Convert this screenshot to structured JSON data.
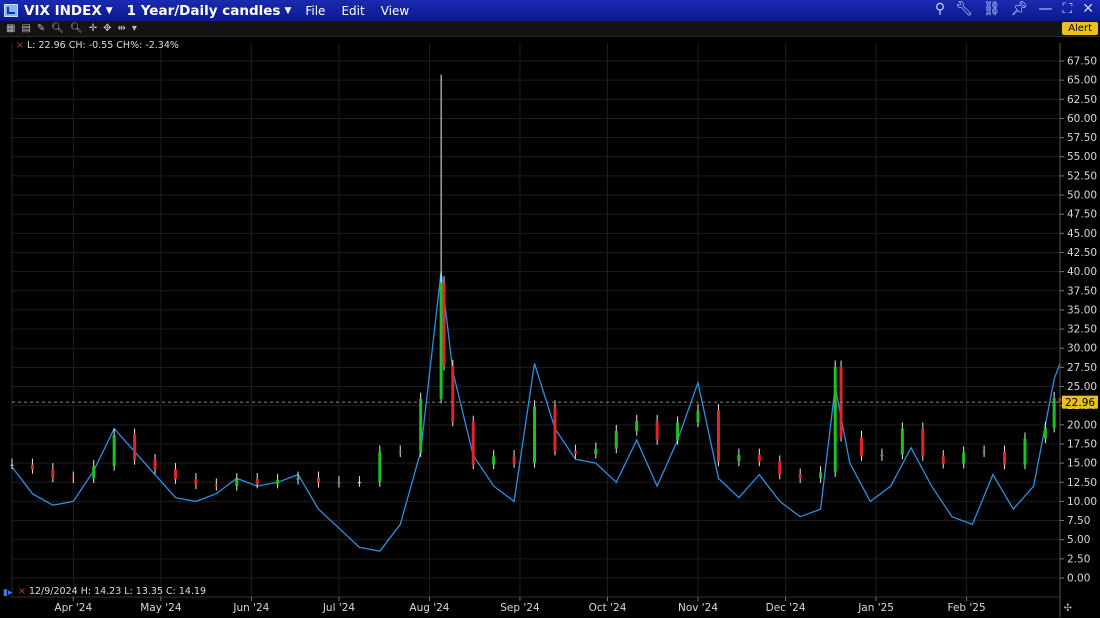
{
  "window": {
    "symbol": "VIX INDEX",
    "period": "1 Year/Daily candles",
    "menus": [
      {
        "label": "File"
      },
      {
        "label": "Edit"
      },
      {
        "label": "View"
      }
    ],
    "alert_label": "Alert",
    "icons": [
      "search-icon",
      "wrench-icon",
      "link-icon",
      "pin-icon",
      "minimize-icon",
      "maximize-icon",
      "close-icon"
    ]
  },
  "readouts": {
    "top": "L: 22.96 CH: -0.55 CH%: -2.34%",
    "bottom": "12/9/2024  H: 14.23  L: 13.35  C: 14.19"
  },
  "chart_data": {
    "type": "candlestick",
    "title": "",
    "ylim": [
      0,
      67.5
    ],
    "yticks": [
      0,
      2.5,
      5,
      7.5,
      10,
      12.5,
      15,
      17.5,
      20,
      22.5,
      25,
      27.5,
      30,
      32.5,
      35,
      37.5,
      40,
      42.5,
      45,
      47.5,
      50,
      52.5,
      55,
      57.5,
      60,
      62.5,
      65,
      67.5
    ],
    "ytick_labels": [
      "0.00",
      "2.50",
      "5.00",
      "7.50",
      "10.00",
      "12.50",
      "15.00",
      "17.50",
      "20.00",
      "22.50",
      "25.00",
      "27.50",
      "30.00",
      "32.50",
      "35.00",
      "37.50",
      "40.00",
      "42.50",
      "45.00",
      "47.50",
      "50.00",
      "52.50",
      "55.00",
      "57.50",
      "60.00",
      "62.50",
      "65.00",
      "67.50"
    ],
    "xlim": [
      "2024-03-11",
      "2025-03-05"
    ],
    "month_ticks": [
      {
        "date": "2024-04-01",
        "label": "Apr '24"
      },
      {
        "date": "2024-05-01",
        "label": "May '24"
      },
      {
        "date": "2024-06-01",
        "label": "Jun '24"
      },
      {
        "date": "2024-07-01",
        "label": "Jul '24"
      },
      {
        "date": "2024-08-01",
        "label": "Aug '24"
      },
      {
        "date": "2024-09-01",
        "label": "Sep '24"
      },
      {
        "date": "2024-10-01",
        "label": "Oct '24"
      },
      {
        "date": "2024-11-01",
        "label": "Nov '24"
      },
      {
        "date": "2024-12-01",
        "label": "Dec '24"
      },
      {
        "date": "2025-01-01",
        "label": "Jan '25"
      },
      {
        "date": "2025-02-01",
        "label": "Feb '25"
      }
    ],
    "last_price": 22.96,
    "last_price_label": "22.96",
    "colors": {
      "up": "#1fbf2a",
      "down": "#e0262a",
      "neutral": "#e8e8e8",
      "overlay": "#2f8fe0",
      "last_price_tag": "#e8c21a",
      "grid": "#1e1e1e"
    },
    "candle_closes": [
      {
        "date": "2024-03-11",
        "c": 14.8
      },
      {
        "date": "2024-03-18",
        "c": 14.2
      },
      {
        "date": "2024-03-25",
        "c": 13.1
      },
      {
        "date": "2024-04-01",
        "c": 13.0
      },
      {
        "date": "2024-04-08",
        "c": 14.6
      },
      {
        "date": "2024-04-15",
        "c": 18.7
      },
      {
        "date": "2024-04-22",
        "c": 15.4
      },
      {
        "date": "2024-04-29",
        "c": 14.2
      },
      {
        "date": "2024-05-06",
        "c": 12.9
      },
      {
        "date": "2024-05-13",
        "c": 12.2
      },
      {
        "date": "2024-05-20",
        "c": 12.0
      },
      {
        "date": "2024-05-27",
        "c": 12.9
      },
      {
        "date": "2024-06-03",
        "c": 12.3
      },
      {
        "date": "2024-06-10",
        "c": 12.8
      },
      {
        "date": "2024-06-17",
        "c": 13.1
      },
      {
        "date": "2024-06-24",
        "c": 12.4
      },
      {
        "date": "2024-07-01",
        "c": 12.5
      },
      {
        "date": "2024-07-08",
        "c": 12.5
      },
      {
        "date": "2024-07-15",
        "c": 16.5
      },
      {
        "date": "2024-07-22",
        "c": 16.4
      },
      {
        "date": "2024-07-29",
        "c": 23.4
      },
      {
        "date": "2024-08-05",
        "c": 38.6
      },
      {
        "date": "2024-08-06",
        "c": 27.7
      },
      {
        "date": "2024-08-09",
        "c": 20.4
      },
      {
        "date": "2024-08-16",
        "c": 14.8
      },
      {
        "date": "2024-08-23",
        "c": 15.9
      },
      {
        "date": "2024-08-30",
        "c": 15.0
      },
      {
        "date": "2024-09-06",
        "c": 22.4
      },
      {
        "date": "2024-09-13",
        "c": 16.6
      },
      {
        "date": "2024-09-20",
        "c": 16.2
      },
      {
        "date": "2024-09-27",
        "c": 16.9
      },
      {
        "date": "2024-10-04",
        "c": 19.2
      },
      {
        "date": "2024-10-11",
        "c": 20.5
      },
      {
        "date": "2024-10-18",
        "c": 18.0
      },
      {
        "date": "2024-10-25",
        "c": 20.3
      },
      {
        "date": "2024-11-01",
        "c": 21.9
      },
      {
        "date": "2024-11-08",
        "c": 15.2
      },
      {
        "date": "2024-11-15",
        "c": 16.1
      },
      {
        "date": "2024-11-22",
        "c": 15.2
      },
      {
        "date": "2024-11-29",
        "c": 13.5
      },
      {
        "date": "2024-12-06",
        "c": 13.0
      },
      {
        "date": "2024-12-13",
        "c": 13.8
      },
      {
        "date": "2024-12-18",
        "c": 27.6
      },
      {
        "date": "2024-12-20",
        "c": 18.4
      },
      {
        "date": "2024-12-27",
        "c": 15.9
      },
      {
        "date": "2025-01-03",
        "c": 16.1
      },
      {
        "date": "2025-01-10",
        "c": 19.5
      },
      {
        "date": "2025-01-17",
        "c": 15.9
      },
      {
        "date": "2025-01-24",
        "c": 14.9
      },
      {
        "date": "2025-01-31",
        "c": 16.4
      },
      {
        "date": "2025-02-07",
        "c": 16.5
      },
      {
        "date": "2025-02-14",
        "c": 14.8
      },
      {
        "date": "2025-02-21",
        "c": 18.2
      },
      {
        "date": "2025-02-28",
        "c": 19.6
      },
      {
        "date": "2025-03-03",
        "c": 23.5
      },
      {
        "date": "2025-03-05",
        "c": 22.96
      }
    ],
    "overlay_line": [
      {
        "date": "2024-03-11",
        "v": 14.5
      },
      {
        "date": "2024-03-18",
        "v": 11.0
      },
      {
        "date": "2024-03-25",
        "v": 9.5
      },
      {
        "date": "2024-04-01",
        "v": 10.0
      },
      {
        "date": "2024-04-08",
        "v": 14.0
      },
      {
        "date": "2024-04-15",
        "v": 19.5
      },
      {
        "date": "2024-04-22",
        "v": 16.5
      },
      {
        "date": "2024-04-29",
        "v": 13.5
      },
      {
        "date": "2024-05-06",
        "v": 10.5
      },
      {
        "date": "2024-05-13",
        "v": 10.0
      },
      {
        "date": "2024-05-20",
        "v": 11.0
      },
      {
        "date": "2024-05-27",
        "v": 13.0
      },
      {
        "date": "2024-06-03",
        "v": 12.0
      },
      {
        "date": "2024-06-10",
        "v": 12.5
      },
      {
        "date": "2024-06-17",
        "v": 13.5
      },
      {
        "date": "2024-06-24",
        "v": 9.0
      },
      {
        "date": "2024-07-01",
        "v": 6.5
      },
      {
        "date": "2024-07-08",
        "v": 4.0
      },
      {
        "date": "2024-07-15",
        "v": 3.5
      },
      {
        "date": "2024-07-22",
        "v": 7.0
      },
      {
        "date": "2024-07-29",
        "v": 16.5
      },
      {
        "date": "2024-08-05",
        "v": 40.0
      },
      {
        "date": "2024-08-09",
        "v": 27.0
      },
      {
        "date": "2024-08-16",
        "v": 16.0
      },
      {
        "date": "2024-08-23",
        "v": 12.0
      },
      {
        "date": "2024-08-30",
        "v": 10.0
      },
      {
        "date": "2024-09-06",
        "v": 28.0
      },
      {
        "date": "2024-09-13",
        "v": 19.5
      },
      {
        "date": "2024-09-20",
        "v": 15.5
      },
      {
        "date": "2024-09-27",
        "v": 15.0
      },
      {
        "date": "2024-10-04",
        "v": 12.5
      },
      {
        "date": "2024-10-11",
        "v": 18.0
      },
      {
        "date": "2024-10-18",
        "v": 12.0
      },
      {
        "date": "2024-10-25",
        "v": 18.0
      },
      {
        "date": "2024-11-01",
        "v": 25.5
      },
      {
        "date": "2024-11-08",
        "v": 13.0
      },
      {
        "date": "2024-11-15",
        "v": 10.5
      },
      {
        "date": "2024-11-22",
        "v": 13.5
      },
      {
        "date": "2024-11-29",
        "v": 10.0
      },
      {
        "date": "2024-12-06",
        "v": 8.0
      },
      {
        "date": "2024-12-13",
        "v": 9.0
      },
      {
        "date": "2024-12-18",
        "v": 25.0
      },
      {
        "date": "2024-12-23",
        "v": 15.0
      },
      {
        "date": "2024-12-30",
        "v": 10.0
      },
      {
        "date": "2025-01-06",
        "v": 12.0
      },
      {
        "date": "2025-01-13",
        "v": 17.0
      },
      {
        "date": "2025-01-20",
        "v": 12.0
      },
      {
        "date": "2025-01-27",
        "v": 8.0
      },
      {
        "date": "2025-02-03",
        "v": 7.0
      },
      {
        "date": "2025-02-10",
        "v": 13.5
      },
      {
        "date": "2025-02-17",
        "v": 9.0
      },
      {
        "date": "2025-02-24",
        "v": 12.0
      },
      {
        "date": "2025-03-03",
        "v": 26.0
      },
      {
        "date": "2025-03-05",
        "v": 28.0
      }
    ]
  }
}
